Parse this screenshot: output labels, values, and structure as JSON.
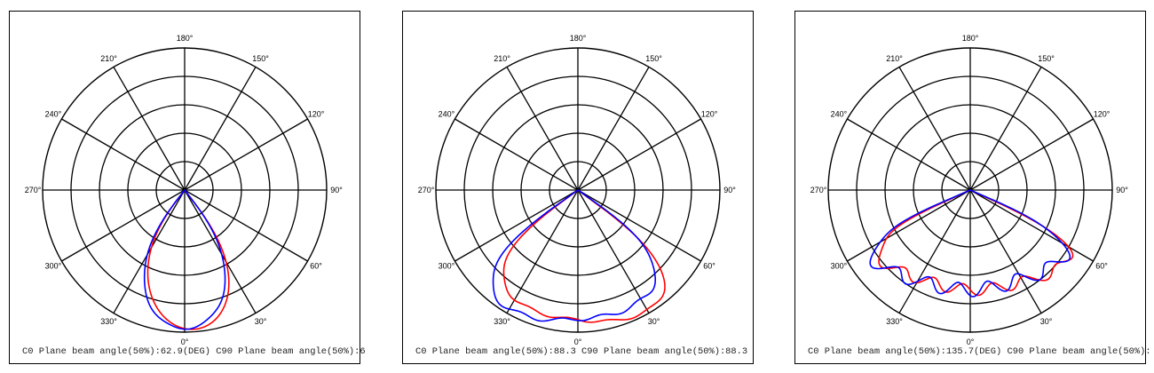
{
  "chart_data": [
    {
      "type": "polar",
      "angle_labels": [
        "0°",
        "30°",
        "60°",
        "90°",
        "120°",
        "150°",
        "180°",
        "210°",
        "240°",
        "270°",
        "300°",
        "330°"
      ],
      "caption": "C0 Plane beam angle(50%):62.9(DEG)  C90 Plane beam angle(50%):6",
      "series": [
        {
          "color": "#ff0000",
          "half_angle": 38,
          "shape": 4.2,
          "asym": 0.14,
          "wobble": 0
        },
        {
          "color": "#0000ff",
          "half_angle": 38,
          "shape": 4.2,
          "asym": 0.0,
          "wobble": 0.005
        }
      ]
    },
    {
      "type": "polar",
      "angle_labels": [
        "0°",
        "30°",
        "60°",
        "90°",
        "120°",
        "150°",
        "180°",
        "210°",
        "240°",
        "270°",
        "300°",
        "330°"
      ],
      "caption": "C0 Plane beam angle(50%):88.3  C90 Plane beam angle(50%):88.3",
      "series": [
        {
          "color": "#ff0000",
          "half_angle": 54,
          "shape": 0.55,
          "asym": 0.09,
          "wobble": 0.01
        },
        {
          "color": "#0000ff",
          "half_angle": 55,
          "shape": 0.6,
          "asym": -0.07,
          "wobble": 0.015
        }
      ]
    },
    {
      "type": "polar",
      "angle_labels": [
        "0°",
        "30°",
        "60°",
        "90°",
        "120°",
        "150°",
        "180°",
        "210°",
        "240°",
        "270°",
        "300°",
        "330°"
      ],
      "caption": "C0 Plane beam angle(50%):135.7(DEG)  C90 Plane beam angle(50%):",
      "series": [
        {
          "color": "#ff0000",
          "half_angle": 66,
          "shape": -0.75,
          "asym": 0.04,
          "wobble": 0.04
        },
        {
          "color": "#0000ff",
          "half_angle": 67,
          "shape": -0.7,
          "asym": -0.02,
          "wobble": 0.05
        }
      ]
    }
  ]
}
